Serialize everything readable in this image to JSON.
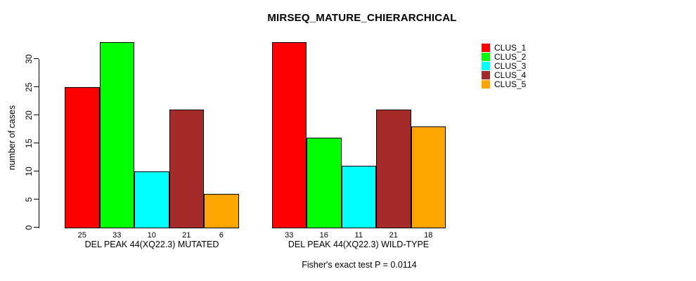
{
  "chart_data": {
    "type": "bar",
    "title": "MIRSEQ_MATURE_CHIERARCHICAL",
    "ylabel": "number of cases",
    "xlabel": "",
    "ylim": [
      0,
      33
    ],
    "y_ticks": [
      0,
      5,
      10,
      15,
      20,
      25,
      30
    ],
    "grid": false,
    "categories": [
      "DEL PEAK 44(XQ22.3) MUTATED",
      "DEL PEAK 44(XQ22.3) WILD-TYPE"
    ],
    "series": [
      {
        "name": "CLUS_1",
        "color": "#FF0000",
        "values": [
          25,
          33
        ]
      },
      {
        "name": "CLUS_2",
        "color": "#00FF00",
        "values": [
          33,
          16
        ]
      },
      {
        "name": "CLUS_3",
        "color": "#00FFFF",
        "values": [
          10,
          11
        ]
      },
      {
        "name": "CLUS_4",
        "color": "#A52A2A",
        "values": [
          21,
          21
        ]
      },
      {
        "name": "CLUS_5",
        "color": "#FFA500",
        "values": [
          6,
          18
        ]
      }
    ],
    "legend_position": "right",
    "bar_value_labels_shown": true,
    "annotation": "Fisher's exact test P = 0.0114",
    "background": "#FFFFFF",
    "text_color": "#000000"
  }
}
